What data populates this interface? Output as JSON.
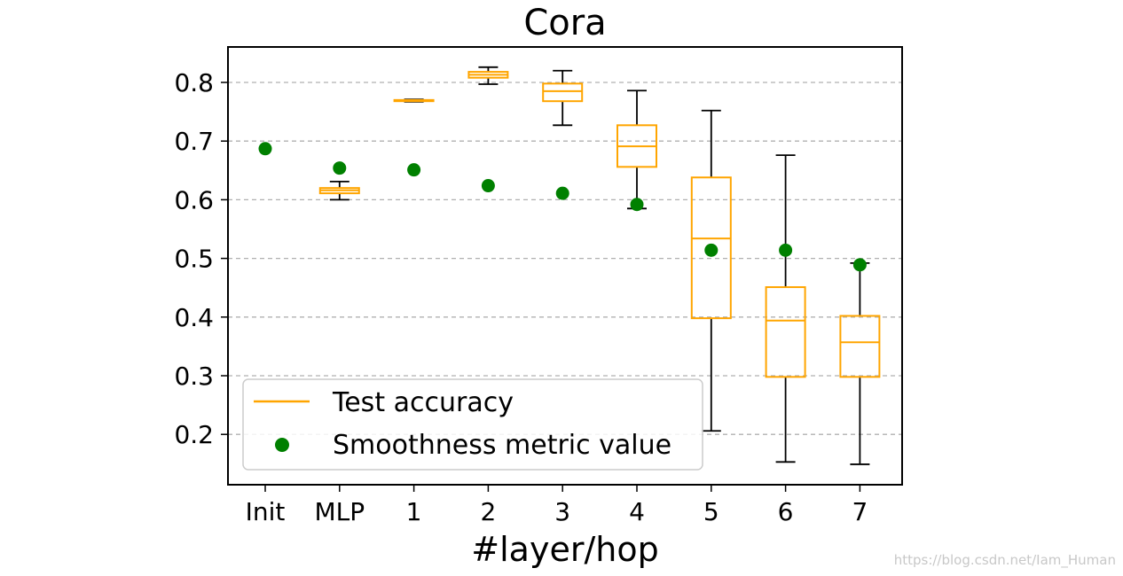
{
  "chart_data": {
    "type": "box",
    "title": "Cora",
    "xlabel": "#layer/hop",
    "ylabel": "",
    "ylim": [
      0.12,
      0.87
    ],
    "y_ticks": [
      0.2,
      0.3,
      0.4,
      0.5,
      0.6,
      0.7,
      0.8
    ],
    "categories": [
      "Init",
      "MLP",
      "1",
      "2",
      "3",
      "4",
      "5",
      "6",
      "7"
    ],
    "grid": "horizontal-dashed",
    "legend_position": "lower-left",
    "series": [
      {
        "name": "Test accuracy",
        "kind": "box",
        "color": "#FFA500",
        "whisker_color": "#000000",
        "boxes": [
          null,
          {
            "whislo": 0.6,
            "q1": 0.611,
            "med": 0.616,
            "q3": 0.62,
            "whishi": 0.631
          },
          {
            "whislo": 0.767,
            "q1": 0.768,
            "med": 0.769,
            "q3": 0.77,
            "whishi": 0.771
          },
          {
            "whislo": 0.797,
            "q1": 0.808,
            "med": 0.813,
            "q3": 0.818,
            "whishi": 0.826
          },
          {
            "whislo": 0.727,
            "q1": 0.768,
            "med": 0.785,
            "q3": 0.798,
            "whishi": 0.82
          },
          {
            "whislo": 0.585,
            "q1": 0.656,
            "med": 0.691,
            "q3": 0.727,
            "whishi": 0.786
          },
          {
            "whislo": 0.206,
            "q1": 0.398,
            "med": 0.534,
            "q3": 0.638,
            "whishi": 0.752
          },
          {
            "whislo": 0.153,
            "q1": 0.298,
            "med": 0.394,
            "q3": 0.451,
            "whishi": 0.676
          },
          {
            "whislo": 0.149,
            "q1": 0.298,
            "med": 0.357,
            "q3": 0.402,
            "whishi": 0.492
          }
        ]
      },
      {
        "name": "Smoothness metric value",
        "kind": "scatter",
        "color": "#008000",
        "values": [
          0.687,
          0.654,
          0.651,
          0.624,
          0.611,
          0.592,
          0.514,
          0.514,
          0.489
        ]
      }
    ]
  },
  "watermark": "https://blog.csdn.net/Iam_Human"
}
